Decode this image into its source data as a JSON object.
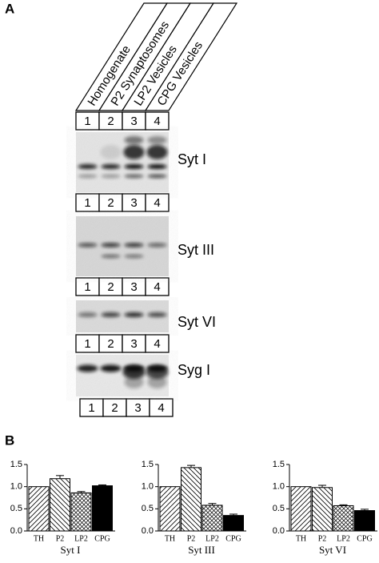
{
  "panel_a": {
    "label": "A",
    "lane_headers": [
      "Homogenate",
      "P2 Synaptosomes",
      "LP2 Vesicles",
      "CPG Vesicles"
    ],
    "lanes": [
      "1",
      "2",
      "3",
      "4"
    ],
    "blots": [
      "Syt I",
      "Syt III",
      "Syt VI",
      "Syg I"
    ]
  },
  "panel_b": {
    "label": "B"
  },
  "chart_data": [
    {
      "type": "bar",
      "xlabel": "Syt I",
      "categories": [
        "TH",
        "P2",
        "LP2",
        "CPG"
      ],
      "values": [
        1.0,
        1.18,
        0.86,
        1.02
      ],
      "errors": [
        0,
        0.07,
        0.03,
        0.02
      ],
      "fills": [
        "hatch",
        "backhatch",
        "crosshatch",
        "#000000"
      ],
      "ylim": [
        0,
        1.5
      ],
      "yticks": [
        {
          "value": 0,
          "label": "0.0"
        },
        0.5,
        {
          "value": 1,
          "label": "1.0"
        },
        1.5
      ]
    },
    {
      "type": "bar",
      "xlabel": "Syt III",
      "categories": [
        "TH",
        "P2",
        "LP2",
        "CPG"
      ],
      "values": [
        1.0,
        1.43,
        0.58,
        0.35
      ],
      "errors": [
        0,
        0.05,
        0.04,
        0.03
      ],
      "fills": [
        "hatch",
        "backhatch",
        "crosshatch",
        "#000000"
      ],
      "ylim": [
        0,
        1.5
      ],
      "yticks": [
        {
          "value": 0,
          "label": "0.0"
        },
        0.5,
        {
          "value": 1,
          "label": "1.0"
        },
        1.5
      ]
    },
    {
      "type": "bar",
      "xlabel": "Syt VI",
      "categories": [
        "TH",
        "P2",
        "LP2",
        "CPG"
      ],
      "values": [
        1.0,
        0.98,
        0.57,
        0.46
      ],
      "errors": [
        0,
        0.05,
        0.02,
        0.03
      ],
      "fills": [
        "hatch",
        "backhatch",
        "crosshatch",
        "#000000"
      ],
      "ylim": [
        0,
        1.5
      ],
      "yticks": [
        {
          "value": 0,
          "label": "0.0"
        },
        0.5,
        {
          "value": 1,
          "label": "1.0"
        },
        1.5
      ]
    }
  ]
}
